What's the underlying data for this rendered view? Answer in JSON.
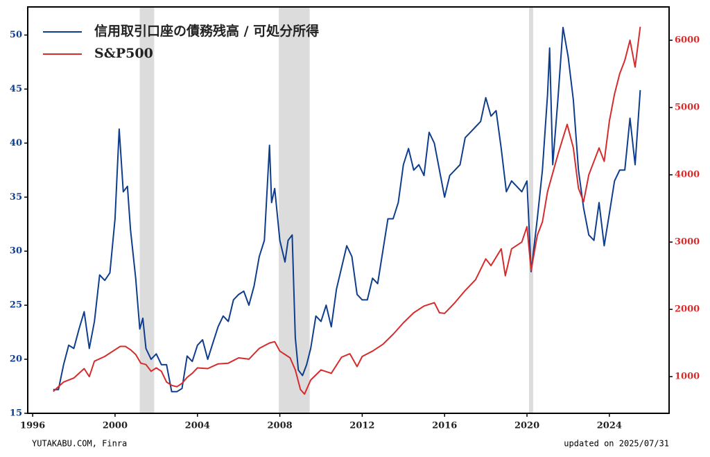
{
  "chart_data": {
    "type": "line",
    "xlim": [
      1995.76,
      2026.9
    ],
    "xticks": [
      1996,
      2000,
      2004,
      2008,
      2012,
      2016,
      2020,
      2024
    ],
    "ylim": [
      15,
      52.6
    ],
    "yticks": [
      15,
      20,
      25,
      30,
      35,
      40,
      45,
      50
    ],
    "y2lim": [
      455,
      6495
    ],
    "y2ticks": [
      1000,
      2000,
      3000,
      4000,
      5000,
      6000
    ],
    "shaded_ranges": [
      [
        2001.2,
        2001.9
      ],
      [
        2007.95,
        2009.45
      ],
      [
        2020.1,
        2020.3
      ]
    ],
    "shade_color": "#dcdcdc",
    "legend": "upper left",
    "series": [
      {
        "name": "信用取引口座の債務残高 / 可処分所得",
        "color": "#0d3d8c",
        "x": [
          1997.0,
          1997.25,
          1997.5,
          1997.75,
          1998.0,
          1998.25,
          1998.5,
          1998.75,
          1999.0,
          1999.25,
          1999.5,
          1999.75,
          2000.0,
          2000.2,
          2000.4,
          2000.6,
          2000.75,
          2001.0,
          2001.2,
          2001.35,
          2001.5,
          2001.75,
          2002.0,
          2002.25,
          2002.5,
          2002.75,
          2003.0,
          2003.25,
          2003.5,
          2003.75,
          2004.0,
          2004.25,
          2004.5,
          2004.75,
          2005.0,
          2005.25,
          2005.5,
          2005.75,
          2006.0,
          2006.25,
          2006.5,
          2006.75,
          2007.0,
          2007.25,
          2007.5,
          2007.6,
          2007.75,
          2008.0,
          2008.25,
          2008.4,
          2008.6,
          2008.75,
          2008.9,
          2009.1,
          2009.3,
          2009.5,
          2009.75,
          2010.0,
          2010.25,
          2010.5,
          2010.75,
          2011.0,
          2011.25,
          2011.5,
          2011.75,
          2012.0,
          2012.25,
          2012.5,
          2012.75,
          2013.0,
          2013.25,
          2013.5,
          2013.75,
          2014.0,
          2014.25,
          2014.5,
          2014.75,
          2015.0,
          2015.25,
          2015.5,
          2015.75,
          2016.0,
          2016.25,
          2016.5,
          2016.75,
          2017.0,
          2017.25,
          2017.5,
          2017.75,
          2018.0,
          2018.25,
          2018.5,
          2018.75,
          2019.0,
          2019.25,
          2019.5,
          2019.75,
          2020.0,
          2020.2,
          2020.5,
          2020.75,
          2021.0,
          2021.1,
          2021.25,
          2021.5,
          2021.75,
          2022.0,
          2022.25,
          2022.5,
          2022.75,
          2023.0,
          2023.25,
          2023.5,
          2023.75,
          2024.0,
          2024.25,
          2024.5,
          2024.75,
          2025.0,
          2025.25,
          2025.5
        ],
        "values": [
          17.2,
          17.2,
          19.5,
          21.3,
          21.0,
          22.8,
          24.4,
          21.0,
          23.5,
          27.8,
          27.3,
          28.0,
          33.0,
          41.3,
          35.5,
          36.0,
          32.0,
          27.5,
          22.8,
          23.8,
          21.0,
          20.0,
          20.5,
          19.5,
          19.5,
          17.0,
          17.0,
          17.3,
          20.3,
          19.8,
          21.3,
          21.8,
          20.0,
          21.5,
          23.0,
          24.0,
          23.5,
          25.5,
          26.0,
          26.3,
          25.0,
          26.8,
          29.5,
          31.0,
          39.8,
          34.5,
          35.8,
          31.0,
          29.0,
          31.0,
          31.5,
          22.0,
          19.0,
          18.5,
          19.5,
          21.0,
          24.0,
          23.5,
          25.0,
          23.0,
          26.5,
          28.5,
          30.5,
          29.5,
          26.0,
          25.5,
          25.5,
          27.5,
          27.0,
          30.0,
          33.0,
          33.0,
          34.5,
          38.0,
          39.5,
          37.5,
          38.0,
          37.0,
          41.0,
          40.0,
          37.5,
          35.0,
          37.0,
          37.5,
          38.0,
          40.5,
          41.0,
          41.5,
          42.0,
          44.2,
          42.5,
          43.0,
          39.5,
          35.5,
          36.5,
          36.0,
          35.5,
          36.5,
          28.1,
          33.0,
          37.5,
          44.5,
          48.8,
          38.0,
          44.0,
          50.7,
          48.0,
          44.0,
          37.5,
          34.0,
          31.5,
          31.0,
          34.5,
          30.5,
          33.5,
          36.5,
          37.5,
          37.5,
          42.3,
          38.0,
          44.9
        ]
      },
      {
        "name": "S&P500",
        "color": "#d62b2b",
        "axis": "y2",
        "x": [
          1997.0,
          1997.5,
          1998.0,
          1998.5,
          1998.75,
          1999.0,
          1999.5,
          2000.0,
          2000.25,
          2000.5,
          2000.75,
          2001.0,
          2001.25,
          2001.5,
          2001.75,
          2002.0,
          2002.25,
          2002.5,
          2002.75,
          2003.0,
          2003.25,
          2003.5,
          2003.75,
          2004.0,
          2004.5,
          2005.0,
          2005.5,
          2006.0,
          2006.5,
          2007.0,
          2007.5,
          2007.75,
          2008.0,
          2008.5,
          2008.75,
          2009.0,
          2009.2,
          2009.5,
          2010.0,
          2010.5,
          2011.0,
          2011.4,
          2011.75,
          2012.0,
          2012.5,
          2013.0,
          2013.5,
          2014.0,
          2014.5,
          2015.0,
          2015.5,
          2015.75,
          2016.0,
          2016.5,
          2017.0,
          2017.5,
          2018.0,
          2018.25,
          2018.75,
          2018.95,
          2019.25,
          2019.75,
          2020.0,
          2020.2,
          2020.5,
          2020.75,
          2021.0,
          2021.5,
          2021.75,
          2021.95,
          2022.25,
          2022.5,
          2022.75,
          2023.0,
          2023.5,
          2023.75,
          2024.0,
          2024.25,
          2024.5,
          2024.75,
          2025.0,
          2025.25,
          2025.5
        ],
        "values": [
          780,
          920,
          980,
          1120,
          1000,
          1230,
          1300,
          1400,
          1450,
          1450,
          1400,
          1330,
          1200,
          1180,
          1080,
          1130,
          1080,
          920,
          870,
          850,
          900,
          990,
          1050,
          1130,
          1120,
          1190,
          1200,
          1280,
          1260,
          1420,
          1500,
          1520,
          1380,
          1280,
          1100,
          810,
          740,
          950,
          1100,
          1050,
          1290,
          1340,
          1150,
          1300,
          1380,
          1480,
          1630,
          1800,
          1950,
          2050,
          2100,
          1950,
          1940,
          2100,
          2280,
          2440,
          2750,
          2650,
          2900,
          2500,
          2900,
          3000,
          3230,
          2580,
          3100,
          3300,
          3750,
          4300,
          4550,
          4750,
          4400,
          3800,
          3600,
          4000,
          4400,
          4200,
          4800,
          5200,
          5500,
          5700,
          6000,
          5600,
          6200
        ]
      }
    ],
    "footnote_left": "YUTAKABU.COM, Finra",
    "footnote_right": "updated on 2025/07/31"
  }
}
